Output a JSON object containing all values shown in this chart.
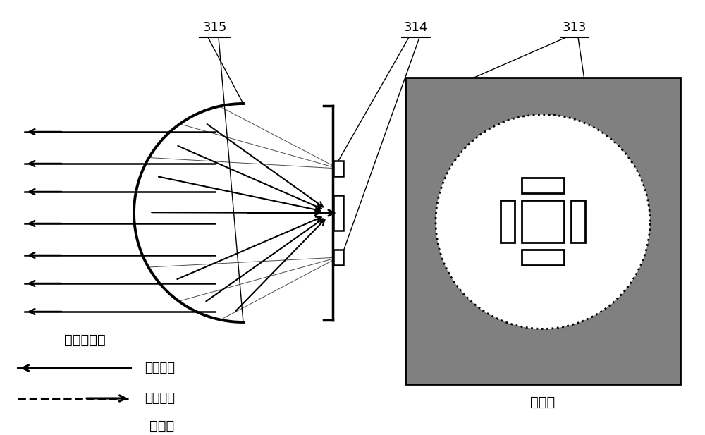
{
  "bg_color": "#ffffff",
  "label_315": "315",
  "label_314": "314",
  "label_313": "313",
  "label_near_parallel": "近似平行光",
  "label_incident": "入射光线",
  "label_reflected": "反射光线",
  "label_side_view": "侧视图",
  "label_top_view": "顶视图",
  "gray_bg": "#808080",
  "arrow_lw": 1.8,
  "mirror_lw": 2.8,
  "bracket_lw": 2.5
}
